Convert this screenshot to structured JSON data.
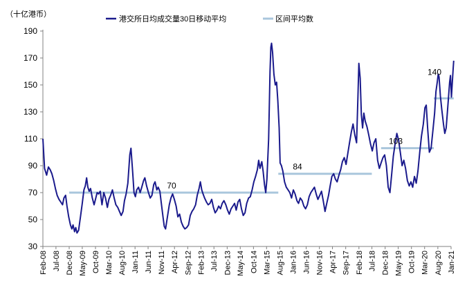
{
  "chart_data": {
    "type": "line",
    "unit_label": "（十亿港币）",
    "ylim": [
      30,
      190
    ],
    "y_ticks": [
      30,
      50,
      70,
      90,
      110,
      130,
      150,
      170,
      190
    ],
    "x_range": [
      "2008-02",
      "2021-01"
    ],
    "x_ticks": [
      "Feb-08",
      "Jul-08",
      "Dec-08",
      "May-09",
      "Oct-09",
      "Mar-10",
      "Aug-10",
      "Jan-11",
      "Jun-11",
      "Nov-11",
      "Apr-12",
      "Sep-12",
      "Feb-13",
      "Jul-13",
      "Dec-13",
      "May-14",
      "Oct-14",
      "Mar-15",
      "Aug-15",
      "Jan-16",
      "Jun-16",
      "Nov-16",
      "Apr-17",
      "Sep-17",
      "Feb-18",
      "Jul-18",
      "Dec-18",
      "May-19",
      "Oct-19",
      "Mar-20",
      "Aug-20",
      "Jan-21"
    ],
    "legend_position": "top",
    "grid": false,
    "series": [
      {
        "name": "港交所日均成交量30日移动平均",
        "color": "#1a1a8c",
        "points": [
          [
            "2008-02-01",
            110
          ],
          [
            "2008-02-20",
            88
          ],
          [
            "2008-03-15",
            83
          ],
          [
            "2008-04-05",
            89
          ],
          [
            "2008-04-25",
            87
          ],
          [
            "2008-05-15",
            84
          ],
          [
            "2008-06-05",
            79
          ],
          [
            "2008-06-25",
            73
          ],
          [
            "2008-07-15",
            68
          ],
          [
            "2008-08-05",
            65
          ],
          [
            "2008-08-25",
            63
          ],
          [
            "2008-09-15",
            61
          ],
          [
            "2008-10-01",
            66
          ],
          [
            "2008-10-20",
            68
          ],
          [
            "2008-11-05",
            60
          ],
          [
            "2008-11-25",
            52
          ],
          [
            "2008-12-15",
            46
          ],
          [
            "2009-01-01",
            43
          ],
          [
            "2009-01-15",
            46
          ],
          [
            "2009-02-01",
            41
          ],
          [
            "2009-02-15",
            44
          ],
          [
            "2009-03-01",
            40
          ],
          [
            "2009-03-20",
            42
          ],
          [
            "2009-04-10",
            52
          ],
          [
            "2009-05-01",
            62
          ],
          [
            "2009-05-20",
            72
          ],
          [
            "2009-06-05",
            75
          ],
          [
            "2009-06-20",
            81
          ],
          [
            "2009-07-05",
            74
          ],
          [
            "2009-07-20",
            71
          ],
          [
            "2009-08-05",
            73
          ],
          [
            "2009-08-25",
            66
          ],
          [
            "2009-09-15",
            61
          ],
          [
            "2009-10-01",
            65
          ],
          [
            "2009-10-20",
            70
          ],
          [
            "2009-11-05",
            69
          ],
          [
            "2009-11-25",
            71
          ],
          [
            "2009-12-15",
            61
          ],
          [
            "2010-01-05",
            70
          ],
          [
            "2010-01-25",
            66
          ],
          [
            "2010-02-15",
            59
          ],
          [
            "2010-03-05",
            65
          ],
          [
            "2010-03-25",
            68
          ],
          [
            "2010-04-15",
            72
          ],
          [
            "2010-05-05",
            66
          ],
          [
            "2010-05-25",
            61
          ],
          [
            "2010-06-15",
            59
          ],
          [
            "2010-07-05",
            56
          ],
          [
            "2010-07-25",
            53
          ],
          [
            "2010-08-15",
            56
          ],
          [
            "2010-09-01",
            64
          ],
          [
            "2010-09-20",
            69
          ],
          [
            "2010-10-10",
            77
          ],
          [
            "2010-11-01",
            98
          ],
          [
            "2010-11-15",
            103
          ],
          [
            "2010-12-05",
            85
          ],
          [
            "2010-12-20",
            70
          ],
          [
            "2011-01-05",
            67
          ],
          [
            "2011-01-20",
            72
          ],
          [
            "2011-02-10",
            74
          ],
          [
            "2011-03-01",
            70
          ],
          [
            "2011-03-20",
            74
          ],
          [
            "2011-04-10",
            79
          ],
          [
            "2011-04-25",
            81
          ],
          [
            "2011-05-15",
            75
          ],
          [
            "2011-06-05",
            70
          ],
          [
            "2011-06-25",
            66
          ],
          [
            "2011-07-15",
            68
          ],
          [
            "2011-08-05",
            76
          ],
          [
            "2011-08-20",
            78
          ],
          [
            "2011-09-10",
            72
          ],
          [
            "2011-09-25",
            74
          ],
          [
            "2011-10-15",
            71
          ],
          [
            "2011-11-01",
            62
          ],
          [
            "2011-11-20",
            52
          ],
          [
            "2011-12-05",
            45
          ],
          [
            "2011-12-20",
            43
          ],
          [
            "2012-01-10",
            52
          ],
          [
            "2012-02-01",
            61
          ],
          [
            "2012-02-20",
            66
          ],
          [
            "2012-03-10",
            69
          ],
          [
            "2012-03-30",
            65
          ],
          [
            "2012-04-20",
            60
          ],
          [
            "2012-05-10",
            52
          ],
          [
            "2012-05-30",
            54
          ],
          [
            "2012-06-20",
            48
          ],
          [
            "2012-07-10",
            45
          ],
          [
            "2012-07-30",
            43
          ],
          [
            "2012-08-20",
            44
          ],
          [
            "2012-09-10",
            46
          ],
          [
            "2012-09-30",
            53
          ],
          [
            "2012-10-20",
            56
          ],
          [
            "2012-11-10",
            58
          ],
          [
            "2012-12-01",
            61
          ],
          [
            "2012-12-20",
            68
          ],
          [
            "2013-01-10",
            73
          ],
          [
            "2013-01-25",
            78
          ],
          [
            "2013-02-10",
            72
          ],
          [
            "2013-02-25",
            69
          ],
          [
            "2013-03-15",
            66
          ],
          [
            "2013-04-05",
            63
          ],
          [
            "2013-04-25",
            61
          ],
          [
            "2013-05-15",
            62
          ],
          [
            "2013-06-05",
            65
          ],
          [
            "2013-06-25",
            59
          ],
          [
            "2013-07-15",
            55
          ],
          [
            "2013-08-05",
            57
          ],
          [
            "2013-08-25",
            60
          ],
          [
            "2013-09-15",
            58
          ],
          [
            "2013-10-05",
            62
          ],
          [
            "2013-10-25",
            64
          ],
          [
            "2013-11-15",
            61
          ],
          [
            "2013-12-05",
            57
          ],
          [
            "2013-12-25",
            54
          ],
          [
            "2014-01-15",
            58
          ],
          [
            "2014-02-05",
            60
          ],
          [
            "2014-02-25",
            62
          ],
          [
            "2014-03-15",
            57
          ],
          [
            "2014-04-05",
            63
          ],
          [
            "2014-04-25",
            65
          ],
          [
            "2014-05-15",
            58
          ],
          [
            "2014-06-05",
            53
          ],
          [
            "2014-06-25",
            55
          ],
          [
            "2014-07-15",
            62
          ],
          [
            "2014-08-05",
            66
          ],
          [
            "2014-08-25",
            67
          ],
          [
            "2014-09-15",
            72
          ],
          [
            "2014-10-05",
            78
          ],
          [
            "2014-10-25",
            82
          ],
          [
            "2014-11-15",
            87
          ],
          [
            "2014-11-30",
            94
          ],
          [
            "2014-12-15",
            88
          ],
          [
            "2015-01-05",
            93
          ],
          [
            "2015-01-20",
            86
          ],
          [
            "2015-02-05",
            76
          ],
          [
            "2015-02-20",
            70
          ],
          [
            "2015-03-05",
            80
          ],
          [
            "2015-03-25",
            110
          ],
          [
            "2015-04-10",
            160
          ],
          [
            "2015-04-20",
            178
          ],
          [
            "2015-04-28",
            181
          ],
          [
            "2015-05-10",
            174
          ],
          [
            "2015-05-25",
            158
          ],
          [
            "2015-06-10",
            150
          ],
          [
            "2015-06-25",
            152
          ],
          [
            "2015-07-10",
            138
          ],
          [
            "2015-07-25",
            118
          ],
          [
            "2015-08-05",
            92
          ],
          [
            "2015-08-20",
            90
          ],
          [
            "2015-09-05",
            86
          ],
          [
            "2015-09-25",
            78
          ],
          [
            "2015-10-15",
            74
          ],
          [
            "2015-11-05",
            72
          ],
          [
            "2015-11-25",
            70
          ],
          [
            "2015-12-15",
            66
          ],
          [
            "2016-01-05",
            72
          ],
          [
            "2016-01-25",
            69
          ],
          [
            "2016-02-15",
            64
          ],
          [
            "2016-03-05",
            62
          ],
          [
            "2016-03-25",
            66
          ],
          [
            "2016-04-15",
            64
          ],
          [
            "2016-05-05",
            60
          ],
          [
            "2016-05-25",
            58
          ],
          [
            "2016-06-15",
            61
          ],
          [
            "2016-07-05",
            67
          ],
          [
            "2016-07-25",
            70
          ],
          [
            "2016-08-15",
            72
          ],
          [
            "2016-09-05",
            74
          ],
          [
            "2016-09-25",
            69
          ],
          [
            "2016-10-15",
            65
          ],
          [
            "2016-11-05",
            68
          ],
          [
            "2016-11-25",
            71
          ],
          [
            "2016-12-15",
            64
          ],
          [
            "2017-01-05",
            56
          ],
          [
            "2017-01-25",
            62
          ],
          [
            "2017-02-15",
            68
          ],
          [
            "2017-03-05",
            75
          ],
          [
            "2017-03-25",
            82
          ],
          [
            "2017-04-15",
            84
          ],
          [
            "2017-05-05",
            80
          ],
          [
            "2017-05-25",
            78
          ],
          [
            "2017-06-15",
            83
          ],
          [
            "2017-07-05",
            87
          ],
          [
            "2017-07-25",
            93
          ],
          [
            "2017-08-15",
            96
          ],
          [
            "2017-09-05",
            91
          ],
          [
            "2017-09-25",
            99
          ],
          [
            "2017-10-15",
            107
          ],
          [
            "2017-11-05",
            115
          ],
          [
            "2017-11-25",
            121
          ],
          [
            "2017-12-15",
            113
          ],
          [
            "2018-01-05",
            107
          ],
          [
            "2018-01-20",
            140
          ],
          [
            "2018-01-31",
            166
          ],
          [
            "2018-02-15",
            155
          ],
          [
            "2018-03-01",
            128
          ],
          [
            "2018-03-15",
            118
          ],
          [
            "2018-03-30",
            129
          ],
          [
            "2018-04-15",
            123
          ],
          [
            "2018-05-05",
            119
          ],
          [
            "2018-05-25",
            113
          ],
          [
            "2018-06-15",
            106
          ],
          [
            "2018-07-05",
            101
          ],
          [
            "2018-07-25",
            107
          ],
          [
            "2018-08-15",
            110
          ],
          [
            "2018-09-05",
            94
          ],
          [
            "2018-09-25",
            88
          ],
          [
            "2018-10-15",
            92
          ],
          [
            "2018-11-05",
            96
          ],
          [
            "2018-11-25",
            98
          ],
          [
            "2018-12-15",
            90
          ],
          [
            "2019-01-05",
            74
          ],
          [
            "2019-01-25",
            70
          ],
          [
            "2019-02-15",
            84
          ],
          [
            "2019-03-05",
            97
          ],
          [
            "2019-03-25",
            106
          ],
          [
            "2019-04-15",
            114
          ],
          [
            "2019-05-05",
            109
          ],
          [
            "2019-05-25",
            100
          ],
          [
            "2019-06-15",
            90
          ],
          [
            "2019-07-05",
            94
          ],
          [
            "2019-07-25",
            88
          ],
          [
            "2019-08-15",
            79
          ],
          [
            "2019-09-05",
            75
          ],
          [
            "2019-09-25",
            78
          ],
          [
            "2019-10-15",
            74
          ],
          [
            "2019-11-05",
            82
          ],
          [
            "2019-11-25",
            77
          ],
          [
            "2019-12-15",
            86
          ],
          [
            "2020-01-05",
            100
          ],
          [
            "2020-01-25",
            112
          ],
          [
            "2020-02-15",
            121
          ],
          [
            "2020-03-05",
            133
          ],
          [
            "2020-03-20",
            135
          ],
          [
            "2020-04-05",
            118
          ],
          [
            "2020-04-25",
            100
          ],
          [
            "2020-05-15",
            103
          ],
          [
            "2020-06-05",
            116
          ],
          [
            "2020-06-25",
            129
          ],
          [
            "2020-07-10",
            145
          ],
          [
            "2020-07-25",
            152
          ],
          [
            "2020-08-05",
            158
          ],
          [
            "2020-08-15",
            156
          ],
          [
            "2020-08-30",
            142
          ],
          [
            "2020-09-15",
            132
          ],
          [
            "2020-10-05",
            121
          ],
          [
            "2020-10-20",
            114
          ],
          [
            "2020-11-05",
            118
          ],
          [
            "2020-11-20",
            130
          ],
          [
            "2020-12-05",
            143
          ],
          [
            "2020-12-15",
            152
          ],
          [
            "2020-12-25",
            157
          ],
          [
            "2021-01-05",
            141
          ],
          [
            "2021-01-15",
            152
          ],
          [
            "2021-01-25",
            162
          ],
          [
            "2021-01-31",
            168
          ]
        ]
      },
      {
        "name": "区间平均数",
        "color": "#a9c6dc",
        "segments": [
          {
            "from": "2008-12-01",
            "to": "2015-07-15",
            "value": 70,
            "label": "70"
          },
          {
            "from": "2015-07-15",
            "to": "2018-06-30",
            "value": 84,
            "label": "84"
          },
          {
            "from": "2018-10-15",
            "to": "2020-06-15",
            "value": 103,
            "label": "103"
          },
          {
            "from": "2020-06-15",
            "to": "2021-01-31",
            "value": 140,
            "label": "140"
          }
        ]
      }
    ]
  }
}
